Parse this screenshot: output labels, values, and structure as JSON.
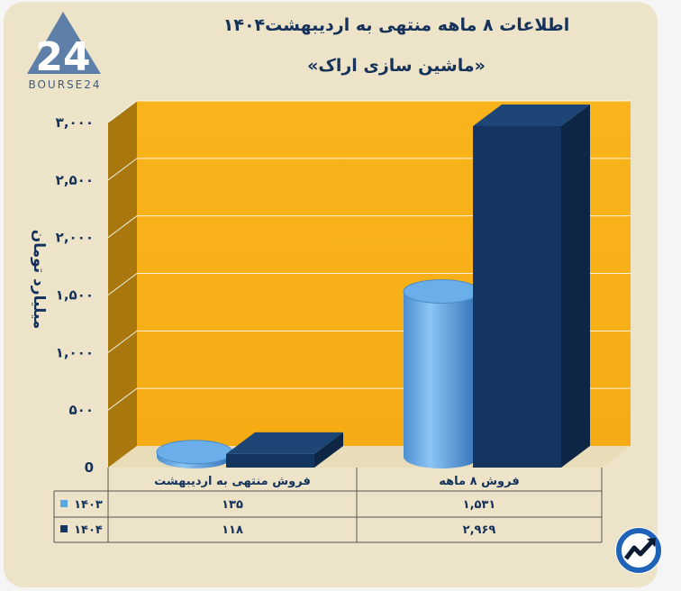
{
  "header": {
    "title": "اطلاعات ۸ ماهه منتهی به اردیبهشت۱۴۰۴",
    "subtitle": "«ماشین سازی اراک»"
  },
  "logo": {
    "number": "24",
    "brand": "BOURSE24"
  },
  "colors": {
    "series_1403": "#5ba4e6",
    "series_1404": "#14355f",
    "back_wall": "#f8b31b",
    "side_wall": "#a8780f",
    "text": "#14325a"
  },
  "chart_data": {
    "type": "bar",
    "ylabel": "میلیارد تومان",
    "ylim": [
      0,
      3000
    ],
    "yticks": [
      0,
      500,
      1000,
      1500,
      2000,
      2500,
      3000
    ],
    "ytick_labels": [
      "0",
      "۵۰۰",
      "۱,۰۰۰",
      "۱,۵۰۰",
      "۲,۰۰۰",
      "۲,۵۰۰",
      "۳,۰۰۰"
    ],
    "categories": [
      "فروش منتهی به  اردیبهشت",
      "فروش ۸  ماهه"
    ],
    "series": [
      {
        "name": "۱۴۰۳",
        "values": [
          135,
          1531
        ],
        "value_labels": [
          "۱۳۵",
          "۱,۵۳۱"
        ],
        "shape": "cylinder"
      },
      {
        "name": "۱۴۰۴",
        "values": [
          118,
          2969
        ],
        "value_labels": [
          "۱۱۸",
          "۲,۹۶۹"
        ],
        "shape": "box"
      }
    ],
    "grid": true,
    "legend": "table-below"
  }
}
